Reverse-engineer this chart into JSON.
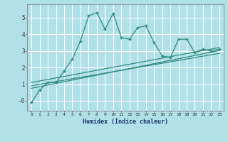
{
  "title": "",
  "xlabel": "Humidex (Indice chaleur)",
  "background_color": "#b0e0e8",
  "grid_color": "#ffffff",
  "line_color": "#2e8b7a",
  "x_values": [
    0,
    1,
    2,
    3,
    4,
    5,
    6,
    7,
    8,
    9,
    10,
    11,
    12,
    13,
    14,
    15,
    16,
    17,
    18,
    19,
    20,
    21,
    22,
    23
  ],
  "main_line": [
    -0.1,
    0.65,
    1.1,
    1.1,
    1.8,
    2.5,
    3.6,
    5.1,
    5.3,
    4.3,
    5.25,
    3.8,
    3.7,
    4.4,
    4.5,
    3.5,
    2.7,
    2.6,
    3.7,
    3.7,
    2.9,
    3.1,
    3.0,
    3.1
  ],
  "ylim": [
    -0.6,
    5.8
  ],
  "xlim": [
    -0.5,
    23.5
  ],
  "yticks": [
    0,
    1,
    2,
    3,
    4,
    5
  ],
  "ytick_labels": [
    "-0",
    "1",
    "2",
    "3",
    "4",
    "5"
  ],
  "reg_lines": [
    [
      0.0,
      1.1,
      23.0,
      3.2
    ],
    [
      0.0,
      0.9,
      23.0,
      2.85
    ],
    [
      0.0,
      0.75,
      23.0,
      3.02
    ]
  ]
}
